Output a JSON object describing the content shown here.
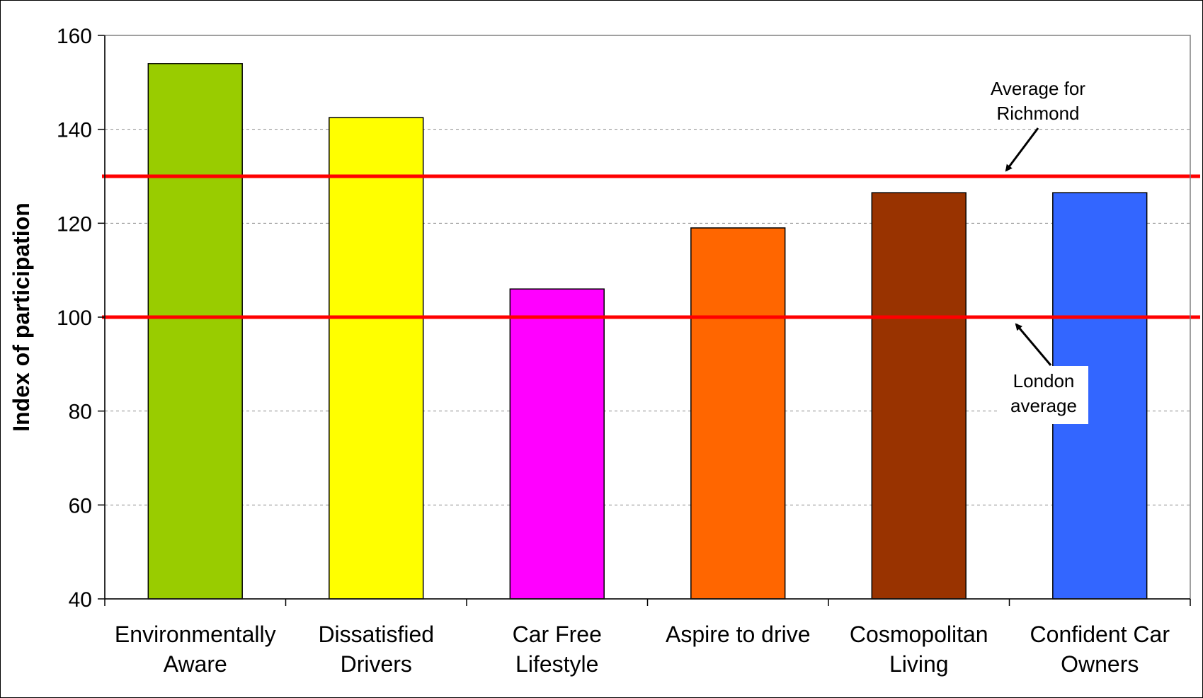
{
  "chart_data": {
    "type": "bar",
    "title": "",
    "xlabel": "",
    "ylabel": "Index of participation",
    "ylim": [
      40,
      160
    ],
    "yticks": [
      40,
      60,
      80,
      100,
      120,
      140,
      160
    ],
    "categories": [
      [
        "Environmentally",
        "Aware"
      ],
      [
        "Dissatisfied",
        "Drivers"
      ],
      [
        "Car Free",
        "Lifestyle"
      ],
      [
        "Aspire to drive"
      ],
      [
        "Cosmopolitan",
        "Living"
      ],
      [
        "Confident Car",
        "Owners"
      ]
    ],
    "values": [
      154,
      142.5,
      106,
      119,
      126.5,
      126.5
    ],
    "bar_colors": [
      "#99CC00",
      "#FFFF00",
      "#FF00FF",
      "#FF6600",
      "#993300",
      "#3366FF"
    ],
    "grid": "horizontal dashed",
    "reference_lines": [
      {
        "value": 130,
        "color": "#FF0000",
        "label": [
          "Average for",
          "Richmond"
        ]
      },
      {
        "value": 100,
        "color": "#FF0000",
        "label": [
          "London",
          "average"
        ]
      }
    ]
  }
}
